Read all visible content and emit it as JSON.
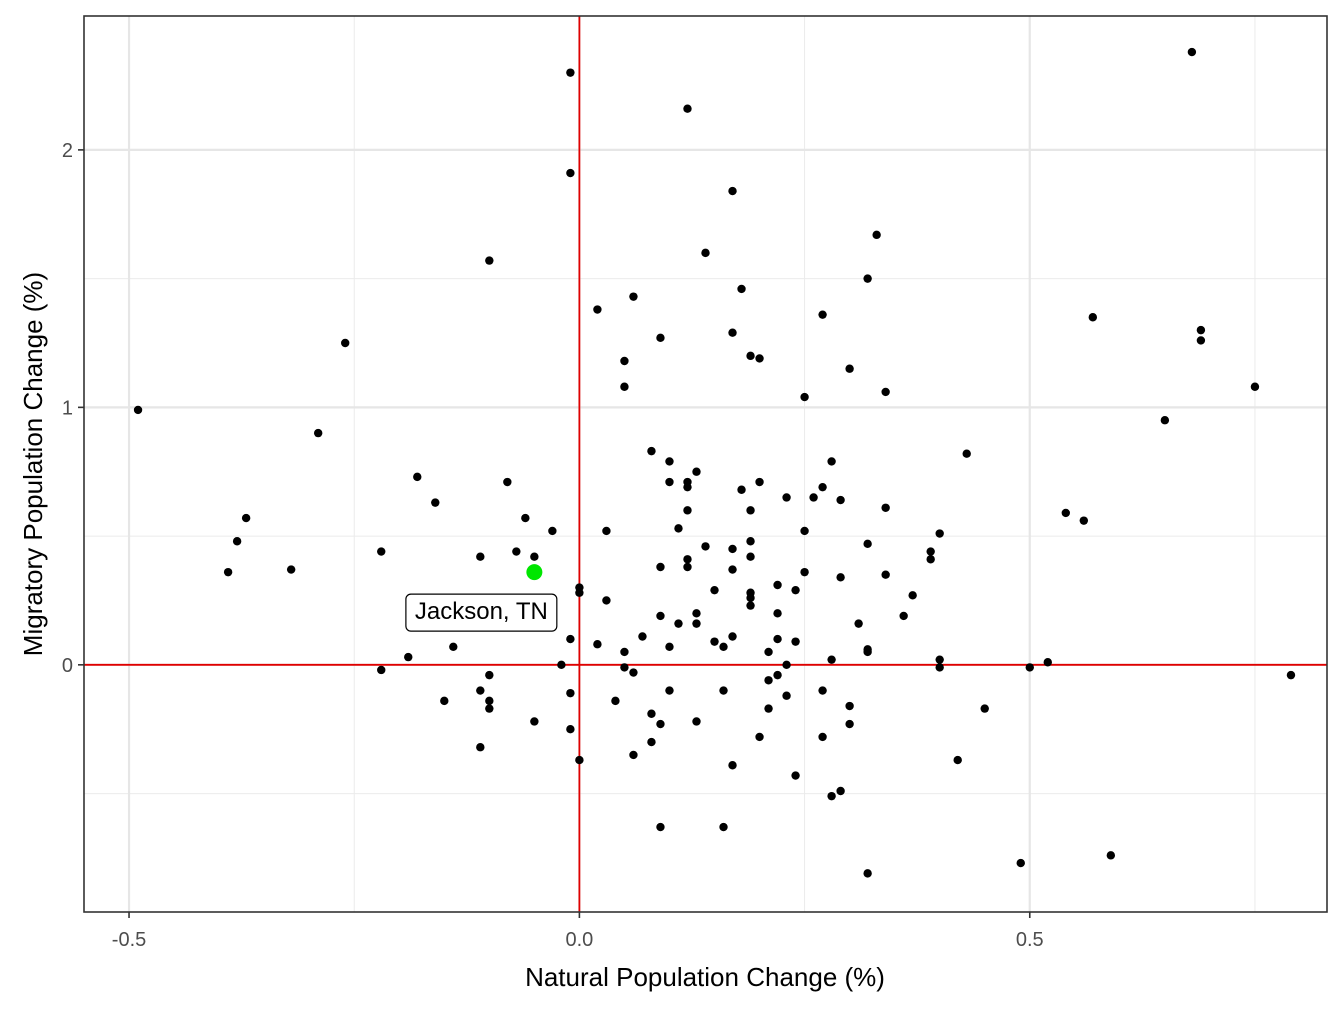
{
  "chart_data": {
    "type": "scatter",
    "title": "",
    "xlabel": "Natural Population Change (%)",
    "ylabel": "Migratory Population Change (%)",
    "xlim": [
      -0.55,
      0.83
    ],
    "ylim": [
      -0.96,
      2.52
    ],
    "x_ticks": [
      -0.5,
      0.0,
      0.5
    ],
    "x_tick_labels": [
      "-0.5",
      "0.0",
      "0.5"
    ],
    "y_ticks": [
      0,
      1,
      2
    ],
    "y_tick_labels": [
      "0",
      "1",
      "2"
    ],
    "x_minor_grid": [
      -0.25,
      0.25,
      0.75
    ],
    "y_minor_grid": [
      -0.5,
      0.5,
      1.5
    ],
    "grid": true,
    "reference_lines": {
      "x": 0,
      "y": 0,
      "color": "#e00000"
    },
    "point_color": "#000000",
    "highlight_color": "#00e600",
    "highlight": {
      "x": -0.05,
      "y": 0.36,
      "label": "Jackson, TN"
    },
    "points": [
      [
        -0.49,
        0.99
      ],
      [
        -0.26,
        1.25
      ],
      [
        -0.29,
        0.9
      ],
      [
        -0.1,
        1.57
      ],
      [
        -0.01,
        2.3
      ],
      [
        -0.01,
        1.91
      ],
      [
        -0.37,
        0.57
      ],
      [
        -0.38,
        0.48
      ],
      [
        -0.39,
        0.36
      ],
      [
        -0.32,
        0.37
      ],
      [
        -0.22,
        0.44
      ],
      [
        -0.18,
        0.73
      ],
      [
        -0.16,
        0.63
      ],
      [
        -0.08,
        0.71
      ],
      [
        -0.06,
        0.57
      ],
      [
        -0.03,
        0.52
      ],
      [
        -0.11,
        0.42
      ],
      [
        -0.07,
        0.44
      ],
      [
        -0.05,
        0.42
      ],
      [
        0.0,
        0.3
      ],
      [
        0.0,
        0.28
      ],
      [
        -0.22,
        -0.02
      ],
      [
        -0.19,
        0.03
      ],
      [
        -0.14,
        0.07
      ],
      [
        -0.15,
        -0.14
      ],
      [
        -0.11,
        -0.1
      ],
      [
        -0.1,
        -0.04
      ],
      [
        -0.1,
        -0.14
      ],
      [
        -0.1,
        -0.17
      ],
      [
        -0.11,
        -0.32
      ],
      [
        -0.05,
        -0.22
      ],
      [
        -0.02,
        0.0
      ],
      [
        -0.01,
        0.1
      ],
      [
        -0.01,
        -0.11
      ],
      [
        -0.01,
        -0.25
      ],
      [
        0.0,
        -0.37
      ],
      [
        0.12,
        2.16
      ],
      [
        0.17,
        1.84
      ],
      [
        0.14,
        1.6
      ],
      [
        0.02,
        1.38
      ],
      [
        0.06,
        1.43
      ],
      [
        0.18,
        1.46
      ],
      [
        0.17,
        1.29
      ],
      [
        0.09,
        1.27
      ],
      [
        0.19,
        1.2
      ],
      [
        0.2,
        1.19
      ],
      [
        0.05,
        1.18
      ],
      [
        0.05,
        1.08
      ],
      [
        0.25,
        1.04
      ],
      [
        0.27,
        1.36
      ],
      [
        0.33,
        1.67
      ],
      [
        0.32,
        1.5
      ],
      [
        0.3,
        1.15
      ],
      [
        0.34,
        1.06
      ],
      [
        0.08,
        0.83
      ],
      [
        0.1,
        0.79
      ],
      [
        0.13,
        0.75
      ],
      [
        0.12,
        0.71
      ],
      [
        0.12,
        0.69
      ],
      [
        0.1,
        0.71
      ],
      [
        0.2,
        0.71
      ],
      [
        0.18,
        0.68
      ],
      [
        0.23,
        0.65
      ],
      [
        0.26,
        0.65
      ],
      [
        0.27,
        0.69
      ],
      [
        0.28,
        0.79
      ],
      [
        0.29,
        0.64
      ],
      [
        0.12,
        0.6
      ],
      [
        0.19,
        0.6
      ],
      [
        0.11,
        0.53
      ],
      [
        0.03,
        0.52
      ],
      [
        0.19,
        0.48
      ],
      [
        0.17,
        0.45
      ],
      [
        0.19,
        0.42
      ],
      [
        0.14,
        0.46
      ],
      [
        0.12,
        0.41
      ],
      [
        0.12,
        0.38
      ],
      [
        0.09,
        0.38
      ],
      [
        0.17,
        0.37
      ],
      [
        0.25,
        0.52
      ],
      [
        0.25,
        0.36
      ],
      [
        0.29,
        0.34
      ],
      [
        0.32,
        0.47
      ],
      [
        0.34,
        0.61
      ],
      [
        0.34,
        0.35
      ],
      [
        0.37,
        0.27
      ],
      [
        0.36,
        0.19
      ],
      [
        0.39,
        0.44
      ],
      [
        0.39,
        0.41
      ],
      [
        0.4,
        0.51
      ],
      [
        0.43,
        0.82
      ],
      [
        0.15,
        0.29
      ],
      [
        0.19,
        0.28
      ],
      [
        0.19,
        0.26
      ],
      [
        0.19,
        0.23
      ],
      [
        0.22,
        0.31
      ],
      [
        0.24,
        0.29
      ],
      [
        0.22,
        0.2
      ],
      [
        0.03,
        0.25
      ],
      [
        0.13,
        0.2
      ],
      [
        0.09,
        0.19
      ],
      [
        0.11,
        0.16
      ],
      [
        0.13,
        0.16
      ],
      [
        0.31,
        0.16
      ],
      [
        0.07,
        0.11
      ],
      [
        0.02,
        0.08
      ],
      [
        0.15,
        0.09
      ],
      [
        0.16,
        0.07
      ],
      [
        0.17,
        0.11
      ],
      [
        0.22,
        0.1
      ],
      [
        0.24,
        0.09
      ],
      [
        0.1,
        0.07
      ],
      [
        0.05,
        0.05
      ],
      [
        0.21,
        0.05
      ],
      [
        0.32,
        0.06
      ],
      [
        0.32,
        0.05
      ],
      [
        0.05,
        -0.01
      ],
      [
        0.06,
        -0.03
      ],
      [
        0.23,
        0.0
      ],
      [
        0.28,
        0.02
      ],
      [
        0.22,
        -0.04
      ],
      [
        0.21,
        -0.06
      ],
      [
        0.1,
        -0.1
      ],
      [
        0.16,
        -0.1
      ],
      [
        0.23,
        -0.12
      ],
      [
        0.27,
        -0.1
      ],
      [
        0.04,
        -0.14
      ],
      [
        0.08,
        -0.19
      ],
      [
        0.09,
        -0.23
      ],
      [
        0.13,
        -0.22
      ],
      [
        0.21,
        -0.17
      ],
      [
        0.3,
        -0.16
      ],
      [
        0.3,
        -0.23
      ],
      [
        0.08,
        -0.3
      ],
      [
        0.06,
        -0.35
      ],
      [
        0.2,
        -0.28
      ],
      [
        0.27,
        -0.28
      ],
      [
        0.17,
        -0.39
      ],
      [
        0.24,
        -0.43
      ],
      [
        0.28,
        -0.51
      ],
      [
        0.29,
        -0.49
      ],
      [
        0.09,
        -0.63
      ],
      [
        0.16,
        -0.63
      ],
      [
        0.32,
        -0.81
      ],
      [
        0.4,
        0.02
      ],
      [
        0.4,
        -0.01
      ],
      [
        0.42,
        -0.37
      ],
      [
        0.45,
        -0.17
      ],
      [
        0.5,
        -0.01
      ],
      [
        0.52,
        0.01
      ],
      [
        0.49,
        -0.77
      ],
      [
        0.59,
        -0.74
      ],
      [
        0.54,
        0.59
      ],
      [
        0.56,
        0.56
      ],
      [
        0.57,
        1.35
      ],
      [
        0.65,
        0.95
      ],
      [
        0.68,
        2.38
      ],
      [
        0.69,
        1.3
      ],
      [
        0.69,
        1.26
      ],
      [
        0.75,
        1.08
      ],
      [
        0.79,
        -0.04
      ]
    ]
  }
}
